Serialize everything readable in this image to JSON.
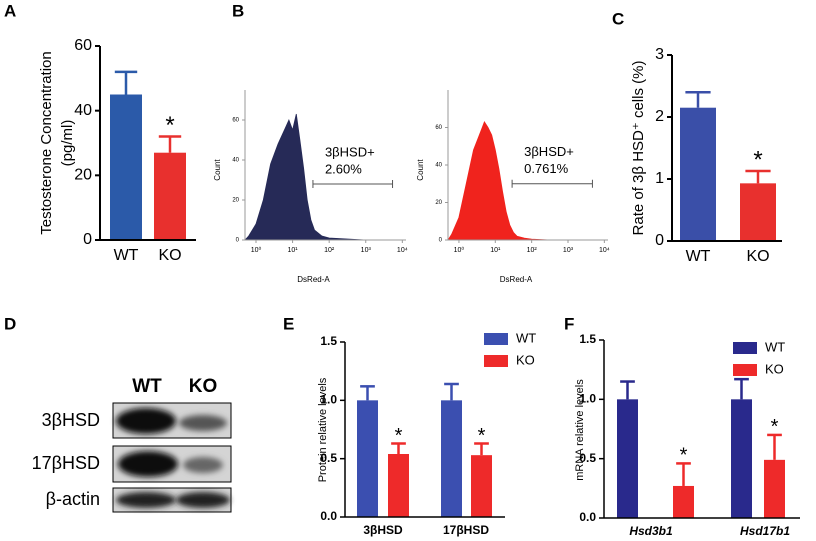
{
  "panels": [
    "A",
    "B",
    "C",
    "D",
    "E",
    "F"
  ],
  "blot": {
    "lanes": [
      "WT",
      "KO"
    ],
    "bands": [
      "3βHSD",
      "17βHSD",
      "β-actin"
    ]
  },
  "chart_data": [
    {
      "type": "bar",
      "y_label": [
        "Testosterone Concentration",
        "(pg/ml)"
      ],
      "categories": [
        "WT",
        "KO"
      ],
      "values": [
        45,
        27
      ],
      "errors": [
        7,
        5
      ],
      "colors": [
        "#2b5aa9",
        "#e8302e"
      ],
      "significance": [
        null,
        "*"
      ],
      "ylim": [
        0,
        60
      ],
      "yticks": [
        0,
        20,
        40,
        60
      ]
    },
    {
      "type": "area",
      "y_label": "Count",
      "x_label": "DsRed-A",
      "color": "#262a57",
      "log_x": true,
      "x": [
        0.5,
        0.63,
        1,
        1.58,
        2.51,
        3.98,
        6.31,
        7.94,
        10,
        12.6,
        15.8,
        20,
        25.1,
        31.6,
        39.8,
        63.1,
        100,
        316,
        1000,
        12600
      ],
      "values": [
        0,
        2,
        8,
        20,
        38,
        48,
        56,
        60,
        55,
        63,
        50,
        36,
        20,
        10,
        5,
        2,
        1,
        0.5,
        0,
        0
      ],
      "xlim": [
        0.5,
        12600
      ],
      "xticks": [
        {
          "value": 1,
          "label": "10⁰"
        },
        {
          "value": 10,
          "label": "10¹"
        },
        {
          "value": 100,
          "label": "10²"
        },
        {
          "value": 1000,
          "label": "10³"
        },
        {
          "value": 10000,
          "label": "10⁴"
        }
      ],
      "ylim": [
        0,
        75
      ],
      "yticks": [
        0,
        20,
        40,
        60
      ],
      "gate": {
        "x": [
          36,
          5400
        ],
        "y": 28,
        "label": "3βHSD+",
        "value_label": "2.60%"
      }
    },
    {
      "type": "area",
      "y_label": "Count",
      "x_label": "DsRed-A",
      "color": "#f0231d",
      "log_x": true,
      "x": [
        0.5,
        0.63,
        1,
        1.58,
        2.51,
        3.98,
        5.01,
        6.31,
        7.94,
        10,
        12.6,
        15.8,
        20,
        25.1,
        31.6,
        39.8,
        63.1,
        100,
        316,
        12600
      ],
      "values": [
        0,
        3,
        12,
        30,
        48,
        58,
        63,
        60,
        56,
        48,
        38,
        26,
        15,
        8,
        4,
        2,
        1,
        0.5,
        0,
        0
      ],
      "xlim": [
        0.5,
        12600
      ],
      "xticks": [
        {
          "value": 1,
          "label": "10⁰"
        },
        {
          "value": 10,
          "label": "10¹"
        },
        {
          "value": 100,
          "label": "10²"
        },
        {
          "value": 1000,
          "label": "10³"
        },
        {
          "value": 10000,
          "label": "10⁴"
        }
      ],
      "ylim": [
        0,
        80
      ],
      "yticks": [
        0,
        20,
        40,
        60
      ],
      "gate": {
        "x": [
          29,
          4700
        ],
        "y": 30,
        "label": "3βHSD+",
        "value_label": "0.761%"
      }
    },
    {
      "type": "bar",
      "y_label": [
        "Rate of 3β HSD⁺ cells (%)"
      ],
      "categories": [
        "WT",
        "KO"
      ],
      "values": [
        2.15,
        0.93
      ],
      "errors": [
        0.25,
        0.2
      ],
      "colors": [
        "#3a4fa8",
        "#e8302e"
      ],
      "significance": [
        null,
        "*"
      ],
      "ylim": [
        0,
        3
      ],
      "yticks": [
        0,
        1,
        2,
        3
      ]
    },
    {
      "type": "bar",
      "y_label": [
        "Protein relative levels"
      ],
      "categories": [
        "3βHSD",
        "17βHSD"
      ],
      "series": [
        {
          "name": "WT",
          "color": "#3b4fb0",
          "values": [
            1.0,
            1.0
          ],
          "errors": [
            0.12,
            0.14
          ]
        },
        {
          "name": "KO",
          "color": "#ee2a2a",
          "values": [
            0.54,
            0.53
          ],
          "errors": [
            0.09,
            0.1
          ],
          "significance": [
            "*",
            "*"
          ]
        }
      ],
      "ylim": [
        0,
        1.5
      ],
      "yticks": [
        {
          "value": 0,
          "label": "0.0"
        },
        0.5,
        {
          "value": 1,
          "label": "1.0"
        },
        1.5
      ],
      "legend": "top-right"
    },
    {
      "type": "bar",
      "y_label": [
        "mRNA relative levels"
      ],
      "categories": [
        "Hsd3b1",
        "Hsd17b1"
      ],
      "italic_categories": true,
      "series": [
        {
          "name": "WT",
          "color": "#29298c",
          "values": [
            1.0,
            1.0
          ],
          "errors": [
            0.15,
            0.17
          ]
        },
        {
          "name": "KO",
          "color": "#ee2a2a",
          "values": [
            0.27,
            0.49
          ],
          "errors": [
            0.19,
            0.21
          ],
          "significance": [
            "*",
            "*"
          ]
        }
      ],
      "ylim": [
        0,
        1.5
      ],
      "yticks": [
        {
          "value": 0,
          "label": "0.0"
        },
        0.5,
        {
          "value": 1,
          "label": "1.0"
        },
        1.5
      ],
      "legend": "top-right"
    }
  ]
}
